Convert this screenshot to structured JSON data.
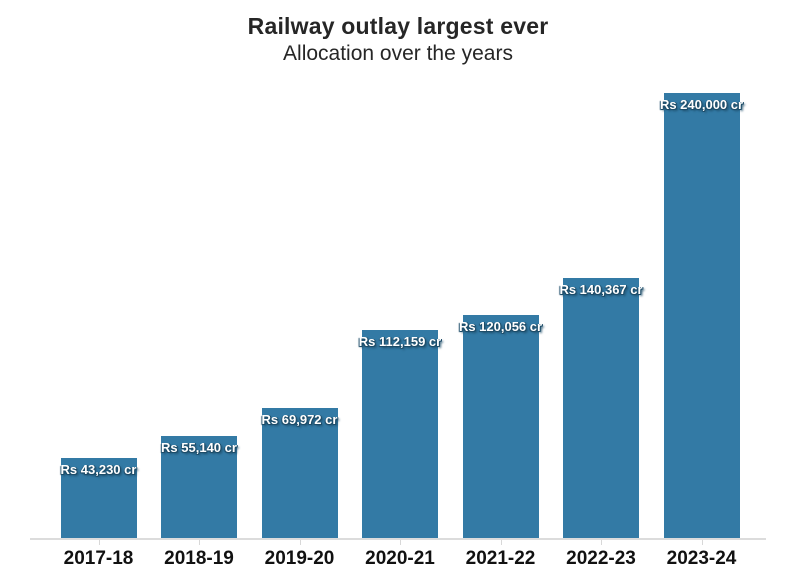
{
  "header": {
    "title": "Railway outlay largest ever",
    "subtitle": "Allocation over the years"
  },
  "chart_data": {
    "type": "bar",
    "title": "Railway outlay largest ever",
    "subtitle": "Allocation over the years",
    "categories": [
      "2017-18",
      "2018-19",
      "2019-20",
      "2020-21",
      "2021-22",
      "2022-23",
      "2023-24"
    ],
    "values": [
      43230,
      55140,
      69972,
      112159,
      120056,
      140367,
      240000
    ],
    "value_labels": [
      "Rs 43,230 cr",
      "Rs 55,140 cr",
      "Rs 69,972 cr",
      "Rs 112,159 cr",
      "Rs 120,056 cr",
      "Rs 140,367 cr",
      "Rs 240,000 cr"
    ],
    "unit": "Rs cr",
    "xlabel": "",
    "ylabel": "",
    "ylim": [
      0,
      240000
    ],
    "grid": false,
    "legend": "none",
    "value_label_position": "inside-top-centered",
    "colors": {
      "bar": "#337aa5",
      "value_label_text": "#ffffff",
      "value_label_outline": "#1d4c68",
      "axis_line": "#dcdcdc",
      "tick": "#d8d8d8",
      "title_text": "#262626",
      "axis_label_text": "#111111",
      "background": "#ffffff"
    }
  }
}
